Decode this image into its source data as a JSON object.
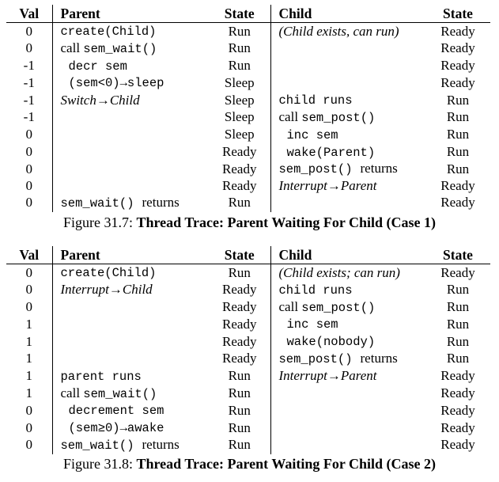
{
  "headers": {
    "val": "Val",
    "parent": "Parent",
    "pstate": "State",
    "child": "Child",
    "cstate": "State"
  },
  "trace1": {
    "rows": [
      {
        "val": "0",
        "parent": [
          {
            "t": "create(Child)",
            "s": "mono"
          }
        ],
        "pstate": "Run",
        "child": [
          {
            "t": "(Child exists, can run)",
            "s": "it"
          }
        ],
        "cstate": "Ready"
      },
      {
        "val": "0",
        "parent": [
          {
            "t": "call ",
            "s": ""
          },
          {
            "t": "sem_wait()",
            "s": "mono"
          }
        ],
        "pstate": "Run",
        "child": [],
        "cstate": "Ready"
      },
      {
        "val": "-1",
        "parent": [
          {
            "t": " decr sem",
            "s": "mono"
          }
        ],
        "pstate": "Run",
        "child": [],
        "cstate": "Ready"
      },
      {
        "val": "-1",
        "parent": [
          {
            "t": " (sem<0)→sleep",
            "s": "mono"
          }
        ],
        "pstate": "Sleep",
        "child": [],
        "cstate": "Ready"
      },
      {
        "val": "-1",
        "parent": [
          {
            "t": "Switch→Child",
            "s": "it"
          }
        ],
        "pstate": "Sleep",
        "child": [
          {
            "t": "child runs",
            "s": "mono"
          }
        ],
        "cstate": "Run"
      },
      {
        "val": "-1",
        "parent": [],
        "pstate": "Sleep",
        "child": [
          {
            "t": "call ",
            "s": ""
          },
          {
            "t": "sem_post()",
            "s": "mono"
          }
        ],
        "cstate": "Run"
      },
      {
        "val": "0",
        "parent": [],
        "pstate": "Sleep",
        "child": [
          {
            "t": " inc sem",
            "s": "mono"
          }
        ],
        "cstate": "Run"
      },
      {
        "val": "0",
        "parent": [],
        "pstate": "Ready",
        "child": [
          {
            "t": " wake(Parent)",
            "s": "mono"
          }
        ],
        "cstate": "Run"
      },
      {
        "val": "0",
        "parent": [],
        "pstate": "Ready",
        "child": [
          {
            "t": "sem_post()",
            "s": "mono"
          },
          {
            "t": " returns",
            "s": ""
          }
        ],
        "cstate": "Run"
      },
      {
        "val": "0",
        "parent": [],
        "pstate": "Ready",
        "child": [
          {
            "t": "Interrupt→Parent",
            "s": "it"
          }
        ],
        "cstate": "Ready"
      },
      {
        "val": "0",
        "parent": [
          {
            "t": "sem_wait()",
            "s": "mono"
          },
          {
            "t": " returns",
            "s": ""
          }
        ],
        "pstate": "Run",
        "child": [],
        "cstate": "Ready"
      }
    ],
    "caption_prefix": "Figure 31.7: ",
    "caption_title": "Thread Trace: Parent Waiting For Child (Case 1)"
  },
  "trace2": {
    "rows": [
      {
        "val": "0",
        "parent": [
          {
            "t": "create(Child)",
            "s": "mono"
          }
        ],
        "pstate": "Run",
        "child": [
          {
            "t": "(Child exists; can run)",
            "s": "it"
          }
        ],
        "cstate": "Ready"
      },
      {
        "val": "0",
        "parent": [
          {
            "t": "Interrupt→Child",
            "s": "it"
          }
        ],
        "pstate": "Ready",
        "child": [
          {
            "t": "child runs",
            "s": "mono"
          }
        ],
        "cstate": "Run"
      },
      {
        "val": "0",
        "parent": [],
        "pstate": "Ready",
        "child": [
          {
            "t": "call ",
            "s": ""
          },
          {
            "t": "sem_post()",
            "s": "mono"
          }
        ],
        "cstate": "Run"
      },
      {
        "val": "1",
        "parent": [],
        "pstate": "Ready",
        "child": [
          {
            "t": " inc sem",
            "s": "mono"
          }
        ],
        "cstate": "Run"
      },
      {
        "val": "1",
        "parent": [],
        "pstate": "Ready",
        "child": [
          {
            "t": " wake(nobody)",
            "s": "mono"
          }
        ],
        "cstate": "Run"
      },
      {
        "val": "1",
        "parent": [],
        "pstate": "Ready",
        "child": [
          {
            "t": "sem_post()",
            "s": "mono"
          },
          {
            "t": " returns",
            "s": ""
          }
        ],
        "cstate": "Run"
      },
      {
        "val": "1",
        "parent": [
          {
            "t": "parent runs",
            "s": "mono"
          }
        ],
        "pstate": "Run",
        "child": [
          {
            "t": "Interrupt→Parent",
            "s": "it"
          }
        ],
        "cstate": "Ready"
      },
      {
        "val": "1",
        "parent": [
          {
            "t": "call ",
            "s": ""
          },
          {
            "t": "sem_wait()",
            "s": "mono"
          }
        ],
        "pstate": "Run",
        "child": [],
        "cstate": "Ready"
      },
      {
        "val": "0",
        "parent": [
          {
            "t": " decrement sem",
            "s": "mono"
          }
        ],
        "pstate": "Run",
        "child": [],
        "cstate": "Ready"
      },
      {
        "val": "0",
        "parent": [
          {
            "t": " (sem≥0)→awake",
            "s": "mono"
          }
        ],
        "pstate": "Run",
        "child": [],
        "cstate": "Ready"
      },
      {
        "val": "0",
        "parent": [
          {
            "t": "sem_wait()",
            "s": "mono"
          },
          {
            "t": " returns",
            "s": ""
          }
        ],
        "pstate": "Run",
        "child": [],
        "cstate": "Ready"
      }
    ],
    "caption_prefix": "Figure 31.8: ",
    "caption_title": "Thread Trace: Parent Waiting For Child (Case 2)"
  }
}
